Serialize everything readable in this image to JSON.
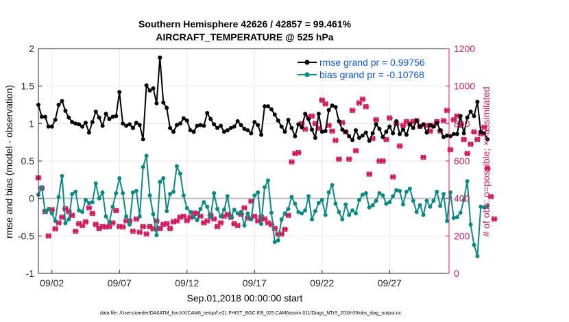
{
  "chart_data": {
    "type": "line",
    "title": "Southern Hemisphere 42626 / 42857 = 99.461%",
    "subtitle": "AIRCRAFT_TEMPERATURE @ 525 hPa",
    "xlabel": "Sep.01,2018 00:00:00 start",
    "ylabel_left": "rmse and bias (model - observation)",
    "ylabel_right": "# of obs: o=possible; ×=assimilated",
    "footer": "data file: /Users/raeder/DAI/ATM_forcXX/CAM6_setup/f.e21.FHIST_BGC.f09_025.CAM6assim.011/Diags_NTrS_2018-09/obs_diag_output.nc",
    "xlim": [
      0.5,
      30.9
    ],
    "ylim_left": [
      -1,
      2
    ],
    "ylim_right": [
      0,
      1200
    ],
    "x_tick_values": [
      1.5,
      6.5,
      11.5,
      16.5,
      21.5,
      26.5
    ],
    "x_tick_labels": [
      "09/02",
      "09/07",
      "09/12",
      "09/17",
      "09/22",
      "09/27"
    ],
    "y_left_ticks": [
      "-1",
      "-0.5",
      "0",
      "0.5",
      "1",
      "1.5",
      "2"
    ],
    "y_left_tick_values": [
      -1,
      -0.5,
      0,
      0.5,
      1,
      1.5,
      2
    ],
    "y_right_ticks": [
      "0",
      "200",
      "400",
      "600",
      "800",
      "1000",
      "1200"
    ],
    "y_right_tick_values": [
      0,
      200,
      400,
      600,
      800,
      1000,
      1200
    ],
    "grid": true,
    "legend": {
      "position": "top-right",
      "entries": [
        "rmse grand pr = 0.99756",
        "bias grand pr = -0.10768"
      ]
    },
    "x_start": 0.5,
    "x_step": 0.25,
    "series": [
      {
        "name": "rmse grand pr = 0.99756",
        "color": "#000000",
        "axis": "left",
        "values": [
          1.25,
          1.09,
          1.09,
          0.96,
          0.96,
          1.05,
          1.25,
          1.3,
          1.17,
          1.08,
          1.02,
          1.0,
          0.99,
          0.96,
          1.01,
          0.88,
          1.02,
          1.16,
          1.08,
          0.97,
          1.13,
          1.06,
          1.09,
          1.1,
          1.42,
          1.0,
          0.97,
          0.99,
          0.94,
          1.01,
          0.98,
          0.79,
          1.51,
          1.44,
          1.47,
          1.27,
          1.88,
          1.28,
          1.21,
          0.94,
          0.89,
          0.98,
          1.0,
          1.07,
          1.04,
          0.91,
          0.89,
          0.97,
          0.98,
          0.97,
          1.14,
          1.06,
          0.99,
          0.94,
          0.97,
          0.89,
          0.91,
          0.94,
          0.96,
          1.03,
          0.98,
          0.93,
          0.91,
          0.87,
          1.02,
          0.98,
          0.85,
          1.23,
          1.23,
          1.19,
          1.12,
          1.04,
          0.96,
          0.89,
          1.05,
          0.94,
          0.83,
          0.99,
          0.95,
          1.13,
          1.06,
          0.92,
          0.81,
          1.13,
          0.89,
          0.9,
          1.18,
          1.24,
          1.22,
          1.03,
          0.92,
          0.89,
          0.83,
          0.78,
          0.91,
          0.81,
          0.84,
          0.88,
          0.77,
          0.87,
          0.99,
          0.93,
          0.82,
          0.89,
          0.96,
          0.87,
          1.03,
          0.86,
          0.92,
          0.85,
          0.99,
          0.94,
          1.04,
          0.96,
          0.99,
          0.88,
          0.98,
          0.96,
          1.01,
          0.91,
          0.82,
          0.84,
          0.83,
          0.86,
          0.86,
          1.1,
          0.87,
          1.08,
          1.16,
          1.1,
          1.29,
          0.89,
          0.87,
          0.79
        ]
      },
      {
        "name": "bias grand pr = -0.10768",
        "color": "#0a8a85",
        "axis": "left",
        "values": [
          0.05,
          0.15,
          -0.18,
          -0.14,
          -0.2,
          -0.3,
          0.02,
          0.3,
          -0.33,
          -0.28,
          0.06,
          0.09,
          -0.16,
          -0.18,
          -0.02,
          -0.06,
          -0.05,
          0.2,
          0.0,
          0.08,
          -0.24,
          -0.32,
          -0.11,
          0.07,
          0.27,
          0.07,
          -0.24,
          -0.35,
          0.08,
          0.1,
          -0.24,
          0.42,
          0.57,
          0.04,
          -0.21,
          -0.49,
          0.22,
          0.27,
          -0.17,
          0.06,
          0.09,
          0.43,
          0.33,
          0.04,
          -0.13,
          -0.18,
          -0.25,
          -0.29,
          -0.14,
          -0.05,
          -0.11,
          -0.25,
          0.07,
          -0.14,
          -0.24,
          -0.15,
          0.03,
          -0.25,
          -0.15,
          -0.2,
          -0.18,
          -0.36,
          -0.2,
          -0.28,
          0.04,
          0.08,
          -0.34,
          0.15,
          0.24,
          -0.19,
          -0.58,
          -0.56,
          -0.28,
          -0.2,
          -0.14,
          0.02,
          -0.07,
          -0.18,
          -0.2,
          -0.16,
          0.03,
          -0.28,
          -0.17,
          -0.06,
          -0.02,
          -0.22,
          0.08,
          0.18,
          -0.07,
          -0.18,
          -0.28,
          -0.08,
          -0.22,
          -0.16,
          -0.2,
          -0.02,
          0.05,
          0.07,
          -0.12,
          -0.09,
          -0.03,
          0.07,
          0.04,
          -0.07,
          -0.05,
          0.03,
          0.11,
          0.1,
          -0.08,
          0.09,
          0.13,
          -0.03,
          -0.18,
          -0.09,
          -0.22,
          -0.03,
          -0.11,
          -0.03,
          0.09,
          -0.1,
          0.06,
          -0.3,
          0.08,
          -0.26,
          -0.25,
          -0.19,
          -0.02,
          0.23,
          -0.35,
          -0.62,
          -0.77,
          -0.11,
          -0.12,
          -0.1
        ]
      },
      {
        "name": "observations assimilated",
        "color": "#d6185c",
        "axis": "right",
        "values": [
          510,
          455,
          330,
          200,
          340,
          238,
          270,
          300,
          345,
          330,
          310,
          225,
          265,
          255,
          275,
          350,
          320,
          262,
          240,
          250,
          248,
          250,
          270,
          335,
          250,
          248,
          280,
          280,
          225,
          290,
          220,
          250,
          210,
          250,
          238,
          280,
          240,
          262,
          265,
          240,
          275,
          280,
          300,
          305,
          282,
          300,
          322,
          320,
          305,
          270,
          280,
          310,
          290,
          250,
          270,
          305,
          315,
          300,
          265,
          255,
          315,
          350,
          295,
          385,
          305,
          280,
          300,
          290,
          270,
          260,
          240,
          210,
          210,
          235,
          310,
          595,
          640,
          645,
          800,
          770,
          835,
          840,
          800,
          775,
          925,
          905,
          790,
          760,
          710,
          610,
          805,
          755,
          610,
          870,
          655,
          910,
          930,
          890,
          530,
          720,
          820,
          600,
          600,
          715,
          830,
          515,
          800,
          680,
          790,
          810,
          800,
          810,
          815,
          785,
          620,
          790,
          760,
          790,
          810,
          760,
          815,
          870,
          660,
          820,
          840,
          790,
          715,
          640,
          690,
          755,
          715,
          745,
          780,
          560,
          410,
          290
        ]
      },
      {
        "name": "observations possible",
        "color": "#d6185c",
        "axis": "right",
        "values": [
          510,
          455,
          330,
          200,
          340,
          238,
          270,
          300,
          345,
          330,
          310,
          225,
          265,
          255,
          275,
          350,
          320,
          262,
          240,
          250,
          248,
          250,
          270,
          335,
          250,
          248,
          280,
          280,
          225,
          290,
          220,
          250,
          210,
          250,
          238,
          280,
          240,
          262,
          265,
          240,
          275,
          280,
          300,
          305,
          282,
          300,
          322,
          320,
          305,
          270,
          280,
          310,
          290,
          250,
          270,
          305,
          315,
          300,
          265,
          255,
          315,
          350,
          295,
          385,
          305,
          280,
          300,
          290,
          270,
          260,
          240,
          210,
          210,
          235,
          310,
          595,
          640,
          645,
          800,
          770,
          835,
          840,
          800,
          775,
          925,
          905,
          790,
          760,
          710,
          610,
          805,
          755,
          610,
          870,
          655,
          910,
          930,
          890,
          530,
          720,
          820,
          600,
          600,
          715,
          830,
          515,
          800,
          680,
          790,
          810,
          800,
          810,
          815,
          785,
          620,
          790,
          760,
          790,
          810,
          760,
          815,
          870,
          660,
          820,
          840,
          790,
          715,
          640,
          690,
          755,
          715,
          745,
          780,
          560,
          410,
          290
        ]
      }
    ]
  }
}
